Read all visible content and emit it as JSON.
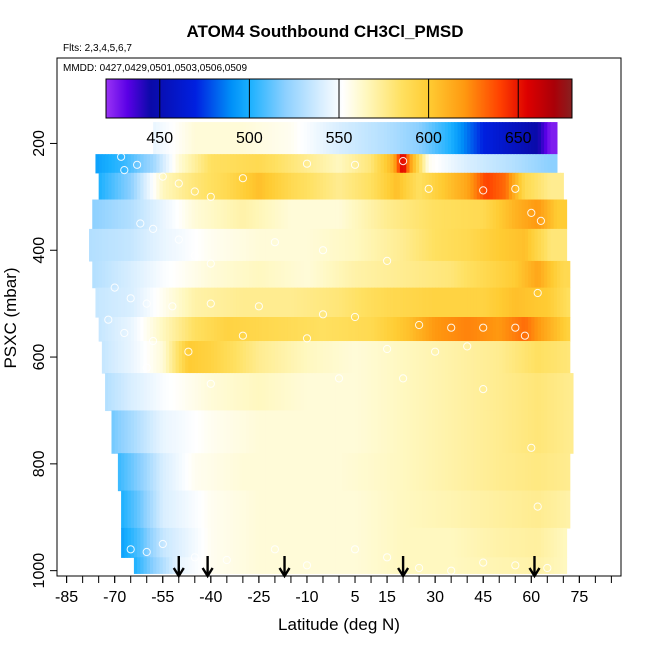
{
  "chart_data": {
    "type": "heatmap",
    "title": "ATOM4 Southbound CH3Cl_PMSD",
    "subtitle_flights": "Flts: 2,3,4,5,6,7",
    "subtitle_dates": "MMDD: 0427,0429,0501,0503,0506,0509",
    "xlabel": "Latitude (deg N)",
    "ylabel": "PSXC (mbar)",
    "xlim": [
      -88,
      88
    ],
    "ylim": [
      1010,
      40
    ],
    "x_ticks": [
      -85,
      -70,
      -55,
      -40,
      -25,
      -10,
      5,
      15,
      30,
      45,
      60,
      75
    ],
    "x_minor_step": 5,
    "y_ticks": [
      200,
      400,
      600,
      800,
      1000
    ],
    "colorbar": {
      "range": [
        420,
        680
      ],
      "ticks": [
        450,
        500,
        550,
        600,
        650
      ],
      "stops": [
        {
          "v": 420,
          "c": "#9a33f5"
        },
        {
          "v": 432,
          "c": "#5a00e6"
        },
        {
          "v": 445,
          "c": "#0a0aa8"
        },
        {
          "v": 470,
          "c": "#0020e0"
        },
        {
          "v": 490,
          "c": "#0090f8"
        },
        {
          "v": 500,
          "c": "#1ab0ff"
        },
        {
          "v": 520,
          "c": "#8cd0ff"
        },
        {
          "v": 540,
          "c": "#d8eeff"
        },
        {
          "v": 552,
          "c": "#ffffff"
        },
        {
          "v": 565,
          "c": "#fff8c0"
        },
        {
          "v": 585,
          "c": "#ffe060"
        },
        {
          "v": 600,
          "c": "#ffcc33"
        },
        {
          "v": 620,
          "c": "#ff9910"
        },
        {
          "v": 640,
          "c": "#ff4000"
        },
        {
          "v": 655,
          "c": "#dd0000"
        },
        {
          "v": 670,
          "c": "#aa0008"
        },
        {
          "v": 680,
          "c": "#882020"
        }
      ]
    },
    "bands": [
      {
        "p": [
          160,
          220
        ],
        "lat": [
          -58,
          68
        ],
        "profile": [
          [
            -58,
            545
          ],
          [
            -45,
            560
          ],
          [
            -30,
            560
          ],
          [
            -15,
            555
          ],
          [
            0,
            540
          ],
          [
            15,
            530
          ],
          [
            25,
            520
          ],
          [
            35,
            500
          ],
          [
            45,
            470
          ],
          [
            55,
            455
          ],
          [
            62,
            445
          ],
          [
            66,
            425
          ]
        ]
      },
      {
        "p": [
          220,
          255
        ],
        "lat": [
          -76,
          68
        ],
        "profile": [
          [
            -76,
            495
          ],
          [
            -67,
            505
          ],
          [
            -58,
            525
          ],
          [
            -50,
            560
          ],
          [
            -40,
            585
          ],
          [
            -25,
            590
          ],
          [
            -10,
            575
          ],
          [
            0,
            565
          ],
          [
            10,
            580
          ],
          [
            17,
            610
          ],
          [
            20,
            660
          ],
          [
            22,
            620
          ],
          [
            28,
            555
          ],
          [
            40,
            540
          ],
          [
            55,
            530
          ],
          [
            66,
            520
          ]
        ]
      },
      {
        "p": [
          255,
          305
        ],
        "lat": [
          -75,
          70
        ],
        "profile": [
          [
            -75,
            500
          ],
          [
            -65,
            520
          ],
          [
            -55,
            565
          ],
          [
            -45,
            580
          ],
          [
            -35,
            590
          ],
          [
            -25,
            605
          ],
          [
            -15,
            590
          ],
          [
            0,
            575
          ],
          [
            10,
            585
          ],
          [
            18,
            605
          ],
          [
            25,
            585
          ],
          [
            32,
            600
          ],
          [
            40,
            615
          ],
          [
            46,
            640
          ],
          [
            52,
            630
          ],
          [
            58,
            590
          ],
          [
            66,
            575
          ]
        ]
      },
      {
        "p": [
          305,
          360
        ],
        "lat": [
          -77,
          71
        ],
        "profile": [
          [
            -77,
            520
          ],
          [
            -65,
            530
          ],
          [
            -55,
            545
          ],
          [
            -45,
            560
          ],
          [
            -30,
            570
          ],
          [
            -15,
            560
          ],
          [
            0,
            560
          ],
          [
            15,
            575
          ],
          [
            30,
            585
          ],
          [
            45,
            590
          ],
          [
            55,
            610
          ],
          [
            62,
            620
          ],
          [
            68,
            600
          ]
        ]
      },
      {
        "p": [
          360,
          420
        ],
        "lat": [
          -78,
          71
        ],
        "profile": [
          [
            -78,
            530
          ],
          [
            -65,
            535
          ],
          [
            -55,
            545
          ],
          [
            -40,
            555
          ],
          [
            -25,
            560
          ],
          [
            -10,
            560
          ],
          [
            5,
            565
          ],
          [
            20,
            575
          ],
          [
            30,
            585
          ],
          [
            40,
            590
          ],
          [
            50,
            600
          ],
          [
            58,
            605
          ],
          [
            66,
            580
          ]
        ]
      },
      {
        "p": [
          420,
          470
        ],
        "lat": [
          -77,
          72
        ],
        "profile": [
          [
            -77,
            530
          ],
          [
            -65,
            540
          ],
          [
            -55,
            550
          ],
          [
            -40,
            560
          ],
          [
            -25,
            565
          ],
          [
            -10,
            560
          ],
          [
            5,
            570
          ],
          [
            20,
            575
          ],
          [
            35,
            580
          ],
          [
            45,
            590
          ],
          [
            55,
            600
          ],
          [
            62,
            615
          ],
          [
            70,
            590
          ]
        ]
      },
      {
        "p": [
          470,
          525
        ],
        "lat": [
          -76,
          72
        ],
        "profile": [
          [
            -76,
            535
          ],
          [
            -65,
            540
          ],
          [
            -55,
            555
          ],
          [
            -45,
            570
          ],
          [
            -30,
            575
          ],
          [
            -15,
            575
          ],
          [
            0,
            580
          ],
          [
            15,
            590
          ],
          [
            30,
            595
          ],
          [
            45,
            595
          ],
          [
            55,
            605
          ],
          [
            65,
            600
          ],
          [
            72,
            585
          ]
        ]
      },
      {
        "p": [
          525,
          570
        ],
        "lat": [
          -75,
          72
        ],
        "profile": [
          [
            -75,
            535
          ],
          [
            -65,
            545
          ],
          [
            -55,
            565
          ],
          [
            -45,
            585
          ],
          [
            -35,
            595
          ],
          [
            -20,
            590
          ],
          [
            -5,
            585
          ],
          [
            10,
            590
          ],
          [
            22,
            605
          ],
          [
            30,
            620
          ],
          [
            40,
            625
          ],
          [
            50,
            620
          ],
          [
            58,
            630
          ],
          [
            66,
            610
          ],
          [
            72,
            595
          ]
        ]
      },
      {
        "p": [
          570,
          630
        ],
        "lat": [
          -74,
          72
        ],
        "profile": [
          [
            -74,
            535
          ],
          [
            -65,
            545
          ],
          [
            -55,
            560
          ],
          [
            -47,
            600
          ],
          [
            -40,
            595
          ],
          [
            -25,
            575
          ],
          [
            -10,
            565
          ],
          [
            5,
            560
          ],
          [
            20,
            565
          ],
          [
            35,
            570
          ],
          [
            50,
            575
          ],
          [
            62,
            585
          ],
          [
            72,
            580
          ]
        ]
      },
      {
        "p": [
          630,
          700
        ],
        "lat": [
          -73,
          73
        ],
        "profile": [
          [
            -73,
            530
          ],
          [
            -65,
            540
          ],
          [
            -55,
            550
          ],
          [
            -40,
            560
          ],
          [
            -25,
            565
          ],
          [
            -10,
            560
          ],
          [
            5,
            560
          ],
          [
            20,
            565
          ],
          [
            35,
            570
          ],
          [
            50,
            575
          ],
          [
            62,
            580
          ],
          [
            73,
            575
          ]
        ]
      },
      {
        "p": [
          700,
          780
        ],
        "lat": [
          -71,
          73
        ],
        "profile": [
          [
            -71,
            515
          ],
          [
            -63,
            530
          ],
          [
            -55,
            545
          ],
          [
            -40,
            555
          ],
          [
            -25,
            560
          ],
          [
            -10,
            560
          ],
          [
            5,
            560
          ],
          [
            20,
            565
          ],
          [
            35,
            570
          ],
          [
            50,
            575
          ],
          [
            62,
            580
          ],
          [
            73,
            575
          ]
        ]
      },
      {
        "p": [
          780,
          850
        ],
        "lat": [
          -69,
          72
        ],
        "profile": [
          [
            -69,
            505
          ],
          [
            -62,
            520
          ],
          [
            -55,
            540
          ],
          [
            -45,
            555
          ],
          [
            -30,
            560
          ],
          [
            -15,
            560
          ],
          [
            0,
            560
          ],
          [
            20,
            565
          ],
          [
            35,
            570
          ],
          [
            50,
            575
          ],
          [
            62,
            578
          ],
          [
            72,
            575
          ]
        ]
      },
      {
        "p": [
          850,
          920
        ],
        "lat": [
          -68,
          72
        ],
        "profile": [
          [
            -68,
            500
          ],
          [
            -62,
            515
          ],
          [
            -55,
            540
          ],
          [
            -40,
            555
          ],
          [
            -25,
            560
          ],
          [
            -10,
            560
          ],
          [
            5,
            560
          ],
          [
            20,
            565
          ],
          [
            35,
            568
          ],
          [
            50,
            572
          ],
          [
            62,
            575
          ],
          [
            72,
            570
          ]
        ]
      },
      {
        "p": [
          920,
          975
        ],
        "lat": [
          -68,
          71
        ],
        "profile": [
          [
            -68,
            495
          ],
          [
            -62,
            510
          ],
          [
            -55,
            535
          ],
          [
            -40,
            555
          ],
          [
            -25,
            560
          ],
          [
            -10,
            560
          ],
          [
            5,
            560
          ],
          [
            20,
            565
          ],
          [
            35,
            565
          ],
          [
            50,
            570
          ],
          [
            62,
            572
          ],
          [
            71,
            565
          ]
        ]
      },
      {
        "p": [
          975,
          1005
        ],
        "lat": [
          -64,
          71
        ],
        "profile": [
          [
            -64,
            500
          ],
          [
            -58,
            520
          ],
          [
            -50,
            545
          ],
          [
            -40,
            555
          ],
          [
            -25,
            560
          ],
          [
            -10,
            560
          ],
          [
            5,
            560
          ],
          [
            20,
            565
          ],
          [
            35,
            565
          ],
          [
            50,
            568
          ],
          [
            62,
            570
          ],
          [
            71,
            565
          ]
        ]
      }
    ],
    "markers_lat": [
      -50,
      -41,
      -17,
      20,
      61
    ],
    "samples": [
      [
        -68,
        225
      ],
      [
        -67,
        250
      ],
      [
        -63,
        240
      ],
      [
        -55,
        262
      ],
      [
        -50,
        275
      ],
      [
        -45,
        290
      ],
      [
        -40,
        300
      ],
      [
        -30,
        265
      ],
      [
        -10,
        238
      ],
      [
        5,
        240
      ],
      [
        20,
        233
      ],
      [
        28,
        285
      ],
      [
        45,
        288
      ],
      [
        55,
        285
      ],
      [
        60,
        330
      ],
      [
        63,
        345
      ],
      [
        -62,
        350
      ],
      [
        -58,
        360
      ],
      [
        -50,
        380
      ],
      [
        -45,
        410
      ],
      [
        -40,
        425
      ],
      [
        -20,
        385
      ],
      [
        -5,
        400
      ],
      [
        15,
        420
      ],
      [
        -70,
        470
      ],
      [
        -65,
        490
      ],
      [
        -60,
        500
      ],
      [
        -52,
        505
      ],
      [
        -40,
        500
      ],
      [
        -25,
        505
      ],
      [
        -5,
        520
      ],
      [
        5,
        525
      ],
      [
        25,
        540
      ],
      [
        35,
        545
      ],
      [
        45,
        545
      ],
      [
        55,
        545
      ],
      [
        62,
        480
      ],
      [
        -72,
        530
      ],
      [
        -67,
        555
      ],
      [
        -58,
        570
      ],
      [
        -47,
        590
      ],
      [
        -30,
        560
      ],
      [
        -10,
        565
      ],
      [
        15,
        585
      ],
      [
        30,
        590
      ],
      [
        40,
        580
      ],
      [
        58,
        560
      ],
      [
        -60,
        620
      ],
      [
        -40,
        650
      ],
      [
        0,
        640
      ],
      [
        20,
        640
      ],
      [
        45,
        660
      ],
      [
        60,
        770
      ],
      [
        62,
        880
      ],
      [
        -70,
        955
      ],
      [
        -65,
        960
      ],
      [
        -60,
        965
      ],
      [
        -55,
        950
      ],
      [
        -45,
        975
      ],
      [
        -35,
        980
      ],
      [
        -20,
        960
      ],
      [
        -10,
        990
      ],
      [
        5,
        960
      ],
      [
        15,
        975
      ],
      [
        25,
        995
      ],
      [
        35,
        1000
      ],
      [
        45,
        985
      ],
      [
        55,
        990
      ],
      [
        65,
        995
      ]
    ]
  }
}
